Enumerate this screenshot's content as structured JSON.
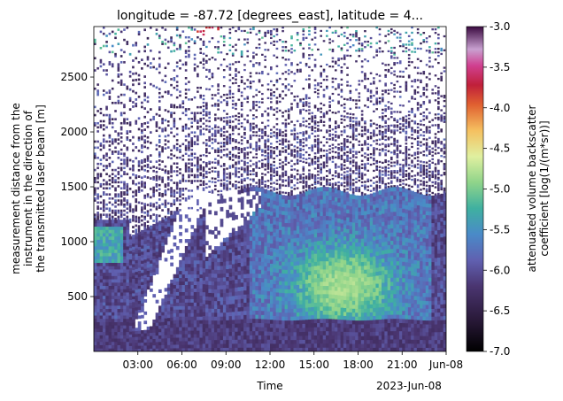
{
  "chart_data": {
    "type": "heatmap",
    "title": "longitude = -87.72 [degrees_east], latitude = 4...",
    "xlabel": "Time",
    "x_offset_label": "2023-Jun-08",
    "ylabel_lines": [
      "measurement distance from the",
      "instrument in the direction of",
      "the transmitted laser beam [m]"
    ],
    "x_ticks": [
      {
        "hour": 3,
        "label": "03:00"
      },
      {
        "hour": 6,
        "label": "06:00"
      },
      {
        "hour": 9,
        "label": "09:00"
      },
      {
        "hour": 12,
        "label": "12:00"
      },
      {
        "hour": 15,
        "label": "15:00"
      },
      {
        "hour": 18,
        "label": "18:00"
      },
      {
        "hour": 21,
        "label": "21:00"
      },
      {
        "hour": 24,
        "label": "Jun-08"
      }
    ],
    "x_range_hours": [
      0,
      24
    ],
    "y_ticks": [
      500,
      1000,
      1500,
      2000,
      2500
    ],
    "ylim": [
      0,
      2960
    ],
    "colorbar": {
      "label_lines": [
        "attenuated volume backscatter",
        "coefficient [log(1/(m*sr))]"
      ],
      "ticks": [
        "-3.0",
        "-3.5",
        "-4.0",
        "-4.5",
        "-5.0",
        "-5.5",
        "-6.0",
        "-6.5",
        "-7.0"
      ],
      "range": [
        -7.0,
        -3.0
      ],
      "colormap": "cubehelix-like: black - purple - blue - green - yellow - orange - red - magenta - light violet - dark purple"
    },
    "regions": [
      {
        "description": "dense near-surface layer",
        "altitude_m": [
          0,
          300
        ],
        "value": -6.2
      },
      {
        "description": "aerosol layer, afternoon",
        "hours": [
          11,
          22
        ],
        "altitude_m": [
          300,
          1450
        ],
        "value": -5.9
      },
      {
        "description": "brighter core",
        "hours": [
          15,
          19
        ],
        "altitude_m": [
          400,
          800
        ],
        "value": -5.7
      },
      {
        "description": "early feature",
        "hours": [
          0,
          2
        ],
        "altitude_m": [
          800,
          1150
        ],
        "value": -5.8
      },
      {
        "description": "sparse noisy returns above",
        "altitude_m": [
          1500,
          2960
        ],
        "value": -6.3
      },
      {
        "description": "strong returns near top",
        "hours": [
          7,
          8.5
        ],
        "altitude_m": [
          2900,
          2960
        ],
        "value": -4.1
      }
    ]
  }
}
